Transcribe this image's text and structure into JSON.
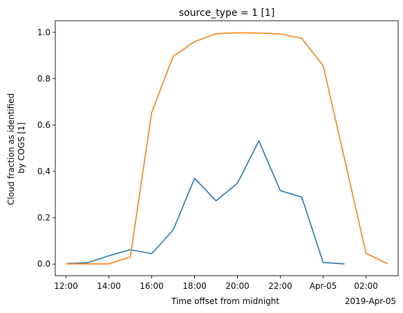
{
  "chart_data": {
    "type": "line",
    "title": "source_type = 1 [1]",
    "xlabel": "Time offset from midnight",
    "ylabel_lines": [
      "Cloud fraction as identified",
      "by COGS [1]"
    ],
    "x_offset_label": "2019-Apr-05",
    "xlim": [
      "11:30",
      "03:30"
    ],
    "ylim": [
      -0.05,
      1.05
    ],
    "grid": false,
    "legend": "none",
    "x_ticks": [
      "12:00",
      "14:00",
      "16:00",
      "18:00",
      "20:00",
      "22:00",
      "Apr-05",
      "02:00"
    ],
    "y_ticks": [
      "0.0",
      "0.2",
      "0.4",
      "0.6",
      "0.8",
      "1.0"
    ],
    "series": [
      {
        "color": "#1f77b4",
        "x": [
          "12:00",
          "13:00",
          "14:00",
          "15:00",
          "16:00",
          "17:00",
          "18:00",
          "19:00",
          "20:00",
          "21:00",
          "22:00",
          "23:00",
          "00:00",
          "01:00"
        ],
        "values": [
          0.002,
          0.006,
          0.036,
          0.062,
          0.045,
          0.147,
          0.37,
          0.273,
          0.349,
          0.532,
          0.317,
          0.289,
          0.007,
          0.001
        ]
      },
      {
        "color": "#ff7f0e",
        "x": [
          "12:00",
          "13:00",
          "14:00",
          "15:00",
          "16:00",
          "17:00",
          "18:00",
          "19:00",
          "20:00",
          "21:00",
          "22:00",
          "23:00",
          "00:00",
          "01:00",
          "02:00",
          "03:00"
        ],
        "values": [
          0.001,
          0.001,
          0.001,
          0.031,
          0.655,
          0.896,
          0.96,
          0.994,
          0.998,
          0.997,
          0.993,
          0.974,
          0.856,
          0.453,
          0.047,
          0.001
        ]
      }
    ]
  }
}
